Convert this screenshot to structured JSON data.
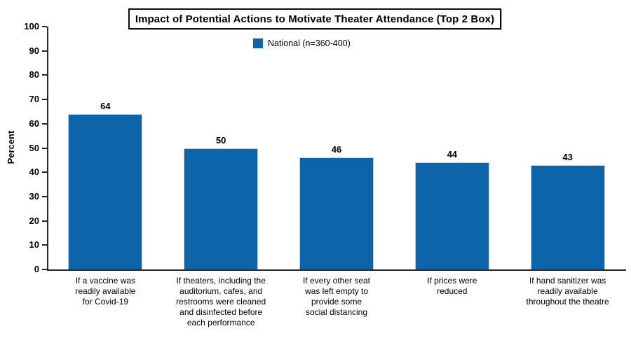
{
  "chart_data": {
    "type": "bar",
    "title": "Impact of Potential Actions to Motivate Theater Attendance (Top 2 Box)",
    "ylabel": "Percent",
    "xlabel": "",
    "ylim": [
      0,
      100
    ],
    "ytick_step": 10,
    "grid": false,
    "legend_position": "top-center",
    "value_labels_shown": true,
    "categories": [
      "If a vaccine was\nreadily available\nfor Covid-19",
      "If theaters, including the\nauditorium, cafes, and\nrestrooms were cleaned\nand disinfected before\neach performance",
      "If every other seat\nwas left empty to\nprovide some\nsocial distancing",
      "If prices were\nreduced",
      "If hand sanitizer was\nreadily available\nthroughout the theatre"
    ],
    "series": [
      {
        "name": "National (n=360-400)",
        "values": [
          64,
          50,
          46,
          44,
          43
        ],
        "color": "#0d64a8"
      }
    ],
    "colors": {
      "bar": "#0d64a8",
      "axis": "#262626",
      "text": "#000000"
    }
  }
}
